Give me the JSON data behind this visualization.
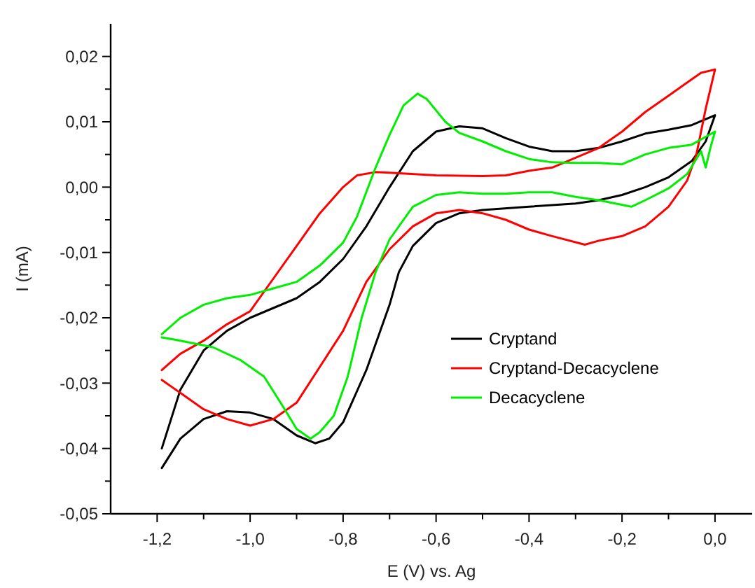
{
  "chart_data": {
    "type": "line",
    "xlabel": "E (V) vs. Ag",
    "ylabel": "I (mA)",
    "xlim": [
      -1.3,
      0.08
    ],
    "xticks": [
      {
        "value": -1.2,
        "label": "-1,2"
      },
      {
        "value": -1.1,
        "label": null
      },
      {
        "value": -1.0,
        "label": "-1,0"
      },
      {
        "value": -0.9,
        "label": null
      },
      {
        "value": -0.8,
        "label": "-0,8"
      },
      {
        "value": -0.7,
        "label": null
      },
      {
        "value": -0.6,
        "label": "-0,6"
      },
      {
        "value": -0.5,
        "label": null
      },
      {
        "value": -0.4,
        "label": "-0,4"
      },
      {
        "value": -0.3,
        "label": null
      },
      {
        "value": -0.2,
        "label": "-0,2"
      },
      {
        "value": -0.1,
        "label": null
      },
      {
        "value": 0.0,
        "label": "0,0"
      }
    ],
    "ylim": [
      -0.05,
      0.025
    ],
    "yticks": [
      {
        "value": -0.05,
        "label": "-0,05"
      },
      {
        "value": -0.045,
        "label": null
      },
      {
        "value": -0.04,
        "label": "-0,04"
      },
      {
        "value": -0.035,
        "label": null
      },
      {
        "value": -0.03,
        "label": "-0,03"
      },
      {
        "value": -0.025,
        "label": null
      },
      {
        "value": -0.02,
        "label": "-0,02"
      },
      {
        "value": -0.015,
        "label": null
      },
      {
        "value": -0.01,
        "label": "-0,01"
      },
      {
        "value": -0.005,
        "label": null
      },
      {
        "value": 0.0,
        "label": "0,00"
      },
      {
        "value": 0.005,
        "label": null
      },
      {
        "value": 0.01,
        "label": "0,01"
      },
      {
        "value": 0.015,
        "label": null
      },
      {
        "value": 0.02,
        "label": "0,02"
      }
    ],
    "grid": false,
    "legend": "bottom right",
    "marker": "none",
    "line_style": "solid",
    "series": [
      {
        "name": "Cryptand",
        "color": "#000000",
        "x": [
          -1.19,
          -1.15,
          -1.1,
          -1.05,
          -1.0,
          -0.95,
          -0.9,
          -0.85,
          -0.8,
          -0.75,
          -0.7,
          -0.65,
          -0.6,
          -0.55,
          -0.5,
          -0.45,
          -0.4,
          -0.35,
          -0.3,
          -0.25,
          -0.2,
          -0.15,
          -0.1,
          -0.05,
          0.0,
          -0.02,
          -0.05,
          -0.1,
          -0.15,
          -0.2,
          -0.25,
          -0.3,
          -0.4,
          -0.5,
          -0.55,
          -0.6,
          -0.65,
          -0.68,
          -0.7,
          -0.75,
          -0.8,
          -0.83,
          -0.86,
          -0.9,
          -0.95,
          -1.0,
          -1.05,
          -1.1,
          -1.15,
          -1.19
        ],
        "values": [
          -0.04,
          -0.031,
          -0.025,
          -0.022,
          -0.02,
          -0.0185,
          -0.017,
          -0.0145,
          -0.011,
          -0.006,
          0.0,
          0.0055,
          0.0085,
          0.0093,
          0.009,
          0.0075,
          0.0062,
          0.0055,
          0.0055,
          0.006,
          0.007,
          0.0082,
          0.0088,
          0.0095,
          0.011,
          0.007,
          0.004,
          0.0015,
          0.0,
          -0.0012,
          -0.002,
          -0.0025,
          -0.003,
          -0.0035,
          -0.004,
          -0.0055,
          -0.009,
          -0.013,
          -0.018,
          -0.028,
          -0.036,
          -0.0385,
          -0.0392,
          -0.038,
          -0.0355,
          -0.0345,
          -0.0343,
          -0.0355,
          -0.0385,
          -0.043
        ]
      },
      {
        "name": "Cryptand-Decacyclene",
        "color": "#ff0000",
        "x": [
          -1.19,
          -1.15,
          -1.1,
          -1.05,
          -1.0,
          -0.95,
          -0.9,
          -0.85,
          -0.8,
          -0.77,
          -0.73,
          -0.7,
          -0.6,
          -0.5,
          -0.45,
          -0.4,
          -0.35,
          -0.3,
          -0.25,
          -0.2,
          -0.15,
          -0.1,
          -0.05,
          -0.03,
          0.0,
          -0.02,
          -0.04,
          -0.06,
          -0.1,
          -0.15,
          -0.2,
          -0.25,
          -0.28,
          -0.35,
          -0.4,
          -0.45,
          -0.5,
          -0.55,
          -0.6,
          -0.65,
          -0.7,
          -0.75,
          -0.8,
          -0.85,
          -0.9,
          -0.95,
          -1.0,
          -1.05,
          -1.1,
          -1.15,
          -1.19
        ],
        "values": [
          -0.028,
          -0.0255,
          -0.0235,
          -0.021,
          -0.019,
          -0.014,
          -0.009,
          -0.004,
          0.0,
          0.0018,
          0.0023,
          0.0022,
          0.0018,
          0.0017,
          0.0018,
          0.0025,
          0.003,
          0.0045,
          0.006,
          0.0085,
          0.0115,
          0.014,
          0.0165,
          0.0175,
          0.018,
          0.012,
          0.005,
          0.001,
          -0.003,
          -0.006,
          -0.0075,
          -0.0082,
          -0.0088,
          -0.0075,
          -0.0065,
          -0.005,
          -0.004,
          -0.0035,
          -0.004,
          -0.006,
          -0.0095,
          -0.0145,
          -0.022,
          -0.0275,
          -0.033,
          -0.0355,
          -0.0365,
          -0.0355,
          -0.034,
          -0.0315,
          -0.0295
        ]
      },
      {
        "name": "Decacyclene",
        "color": "#00ee00",
        "x": [
          -1.19,
          -1.15,
          -1.1,
          -1.05,
          -1.0,
          -0.95,
          -0.9,
          -0.85,
          -0.8,
          -0.77,
          -0.73,
          -0.7,
          -0.67,
          -0.64,
          -0.62,
          -0.58,
          -0.55,
          -0.5,
          -0.45,
          -0.4,
          -0.35,
          -0.3,
          -0.25,
          -0.2,
          -0.15,
          -0.1,
          -0.05,
          0.0,
          -0.01,
          -0.02,
          -0.03,
          -0.06,
          -0.1,
          -0.15,
          -0.18,
          -0.25,
          -0.3,
          -0.35,
          -0.4,
          -0.45,
          -0.5,
          -0.55,
          -0.6,
          -0.65,
          -0.7,
          -0.73,
          -0.76,
          -0.79,
          -0.82,
          -0.85,
          -0.87,
          -0.9,
          -0.93,
          -0.97,
          -1.02,
          -1.08,
          -1.15,
          -1.19
        ],
        "values": [
          -0.0225,
          -0.02,
          -0.018,
          -0.017,
          -0.0165,
          -0.0155,
          -0.0145,
          -0.012,
          -0.0085,
          -0.0045,
          0.003,
          0.008,
          0.0125,
          0.0143,
          0.0135,
          0.01,
          0.0083,
          0.007,
          0.0055,
          0.0043,
          0.0038,
          0.0037,
          0.0037,
          0.0035,
          0.005,
          0.006,
          0.0065,
          0.0085,
          0.006,
          0.003,
          0.0055,
          0.002,
          -0.0002,
          -0.002,
          -0.003,
          -0.002,
          -0.0015,
          -0.0008,
          -0.0008,
          -0.001,
          -0.001,
          -0.0008,
          -0.0012,
          -0.003,
          -0.008,
          -0.013,
          -0.02,
          -0.029,
          -0.035,
          -0.0375,
          -0.0385,
          -0.037,
          -0.0335,
          -0.029,
          -0.0265,
          -0.0245,
          -0.0235,
          -0.023
        ]
      }
    ]
  }
}
